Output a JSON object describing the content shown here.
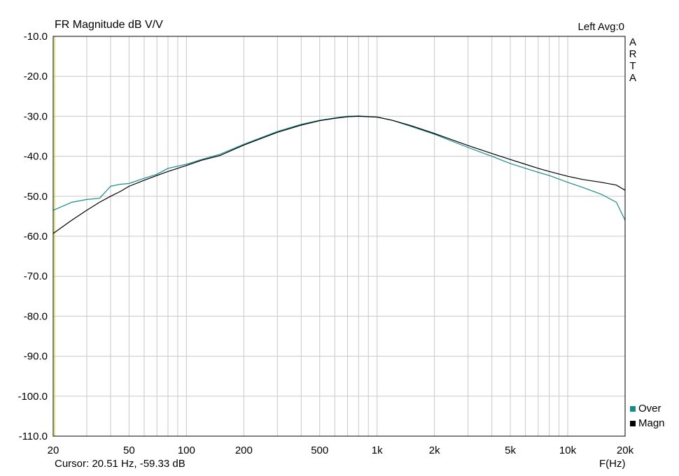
{
  "header": {
    "title": "FR Magnitude dB V/V",
    "channel": "Left  Avg:0",
    "brand_letters": [
      "A",
      "R",
      "T",
      "A"
    ]
  },
  "footer": {
    "cursor": "Cursor: 20.51 Hz, -59.33 dB",
    "x_unit": "F(Hz)"
  },
  "colors": {
    "over": "#1a8a8a",
    "magn": "#000000",
    "grid": "#c8c8c8",
    "left_edge": "#c8c800"
  },
  "chart_data": {
    "type": "line",
    "title": "FR Magnitude dB V/V",
    "xlabel": "F(Hz)",
    "ylabel": "",
    "x_scale": "log",
    "xlim": [
      20,
      20000
    ],
    "ylim": [
      -110,
      -10
    ],
    "grid": true,
    "legend_position": "bottom-right",
    "x_ticks": [
      {
        "value": 20,
        "label": "20"
      },
      {
        "value": 50,
        "label": "50"
      },
      {
        "value": 100,
        "label": "100"
      },
      {
        "value": 200,
        "label": "200"
      },
      {
        "value": 500,
        "label": "500"
      },
      {
        "value": 1000,
        "label": "1k"
      },
      {
        "value": 2000,
        "label": "2k"
      },
      {
        "value": 5000,
        "label": "5k"
      },
      {
        "value": 10000,
        "label": "10k"
      },
      {
        "value": 20000,
        "label": "20k"
      }
    ],
    "y_ticks": [
      {
        "value": -10,
        "label": "-10.0"
      },
      {
        "value": -20,
        "label": "-20.0"
      },
      {
        "value": -30,
        "label": "-30.0"
      },
      {
        "value": -40,
        "label": "-40.0"
      },
      {
        "value": -50,
        "label": "-50.0"
      },
      {
        "value": -60,
        "label": "-60.0"
      },
      {
        "value": -70,
        "label": "-70.0"
      },
      {
        "value": -80,
        "label": "-80.0"
      },
      {
        "value": -90,
        "label": "-90.0"
      },
      {
        "value": -100,
        "label": "-100.0"
      },
      {
        "value": -110,
        "label": "-110.0"
      }
    ],
    "series": [
      {
        "name": "Over",
        "color": "#1a8a8a",
        "x": [
          20,
          25,
          30,
          35,
          40,
          45,
          50,
          60,
          70,
          80,
          100,
          120,
          150,
          200,
          300,
          400,
          500,
          600,
          700,
          800,
          1000,
          1200,
          1500,
          2000,
          3000,
          4000,
          5000,
          6000,
          7000,
          8000,
          10000,
          12000,
          15000,
          18000,
          20000
        ],
        "y": [
          -53.5,
          -51.5,
          -50.8,
          -50.5,
          -47.5,
          -47.0,
          -46.8,
          -45.5,
          -44.5,
          -43.0,
          -42.0,
          -40.8,
          -39.5,
          -37.0,
          -33.8,
          -32.0,
          -31.0,
          -30.4,
          -30.0,
          -29.9,
          -30.2,
          -31.0,
          -32.5,
          -34.5,
          -37.8,
          -40.0,
          -41.8,
          -43.0,
          -44.0,
          -44.8,
          -46.5,
          -47.8,
          -49.5,
          -51.5,
          -56.0
        ]
      },
      {
        "name": "Magn",
        "color": "#000000",
        "x": [
          20,
          25,
          30,
          35,
          40,
          45,
          50,
          60,
          70,
          80,
          100,
          120,
          150,
          200,
          300,
          400,
          500,
          600,
          700,
          800,
          1000,
          1200,
          1500,
          2000,
          3000,
          4000,
          5000,
          6000,
          7000,
          8000,
          10000,
          12000,
          15000,
          18000,
          20000
        ],
        "y": [
          -59.3,
          -56.0,
          -53.5,
          -51.5,
          -50.0,
          -48.8,
          -47.5,
          -46.0,
          -44.8,
          -43.8,
          -42.3,
          -41.0,
          -39.8,
          -37.2,
          -34.0,
          -32.2,
          -31.1,
          -30.5,
          -30.1,
          -30.0,
          -30.2,
          -31.0,
          -32.3,
          -34.3,
          -37.3,
          -39.3,
          -40.8,
          -42.0,
          -43.0,
          -43.8,
          -45.0,
          -45.8,
          -46.5,
          -47.2,
          -48.5
        ]
      }
    ]
  }
}
